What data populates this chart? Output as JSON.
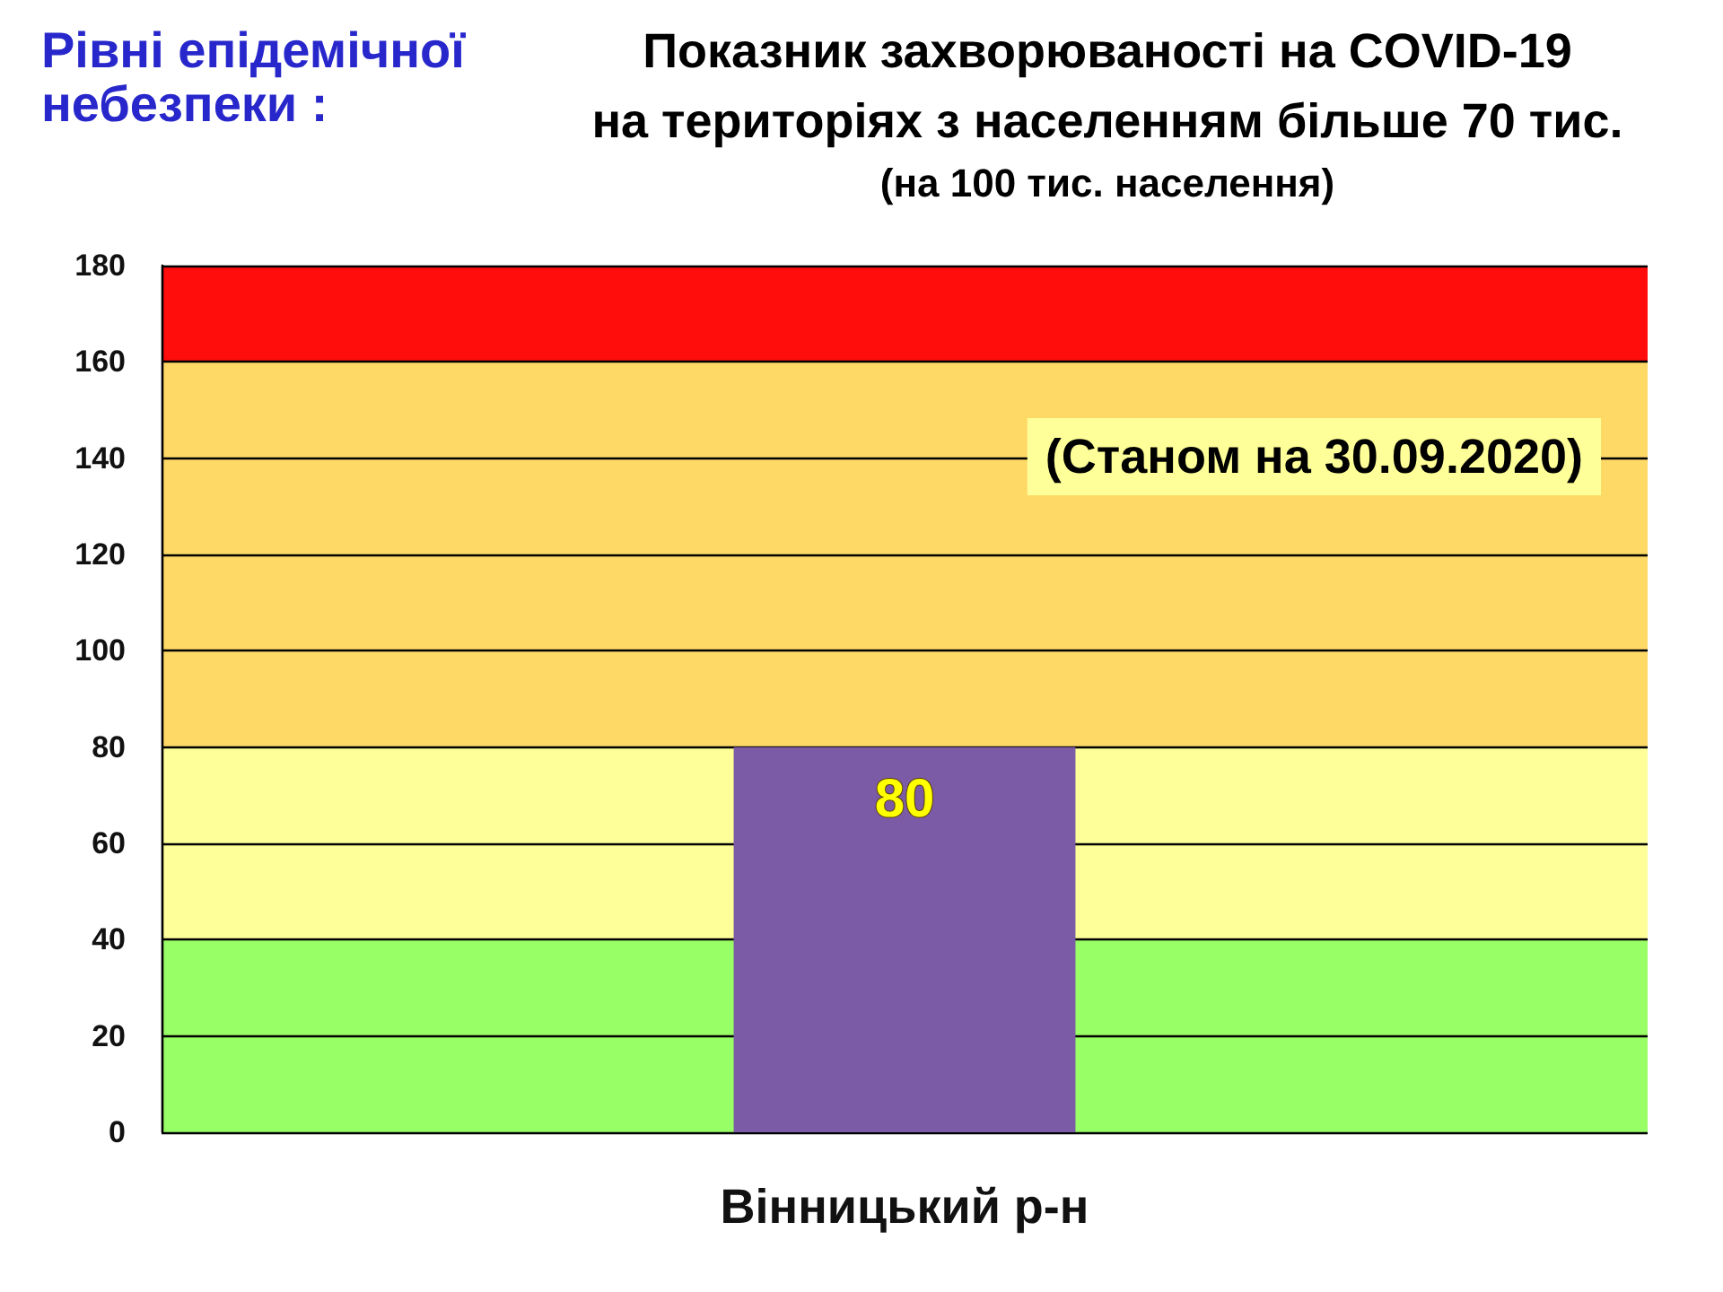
{
  "chart_data": {
    "type": "bar",
    "title": "Показник захворюваності на COVID-19\nна територіях з населенням більше 70 тис.",
    "subtitle": "(на 100 тис. населення)",
    "annotations": [
      "Рівні епідемічної\nнебезпеки :",
      "(Станом на 30.09.2020)"
    ],
    "categories": [
      "Вінницький р-н"
    ],
    "values": [
      80
    ],
    "color": "#7b5aa6",
    "data_labels": true,
    "ylim": [
      0,
      180
    ],
    "yticks": [
      0,
      20,
      40,
      60,
      80,
      100,
      120,
      140,
      160,
      180
    ],
    "grid": "y",
    "bands": [
      {
        "axis": "y",
        "from": 0,
        "to": 40,
        "color": "#99ff66"
      },
      {
        "axis": "y",
        "from": 40,
        "to": 80,
        "color": "#ffff99"
      },
      {
        "axis": "y",
        "from": 80,
        "to": 160,
        "color": "#ffd966"
      },
      {
        "axis": "y",
        "from": 160,
        "to": 180,
        "color": "#ff0d0d"
      }
    ]
  }
}
